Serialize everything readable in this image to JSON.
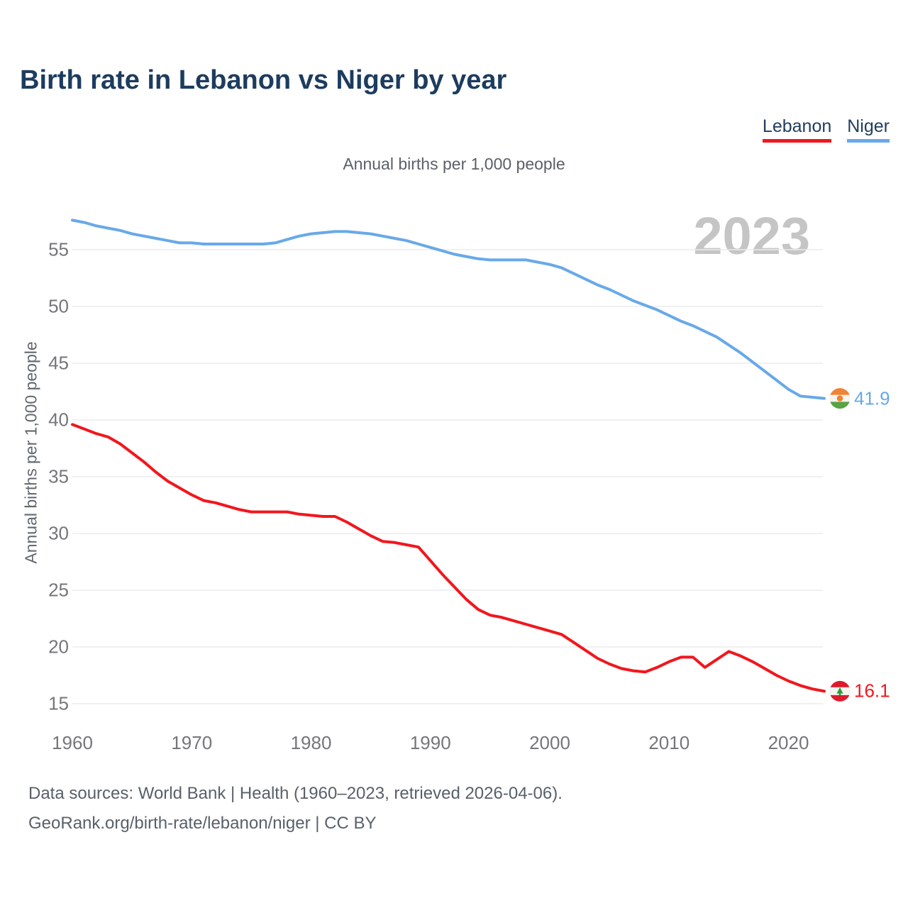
{
  "footer": {
    "line1": "Data sources: World Bank | Health (1960–2023, retrieved 2026-04-06).",
    "line2": "GeoRank.org/birth-rate/lebanon/niger | CC BY"
  },
  "chart_data": {
    "type": "line",
    "title": "Birth rate in Lebanon vs Niger by year",
    "subtitle": "Annual births per 1,000 people",
    "ylabel": "Annual births per 1,000 people",
    "xlabel": "",
    "watermark": "2023",
    "grid": true,
    "legend_position": "top-right",
    "x_ticks": [
      1960,
      1970,
      1980,
      1990,
      2000,
      2010,
      2020
    ],
    "y_ticks": [
      15,
      20,
      25,
      30,
      35,
      40,
      45,
      50,
      55
    ],
    "ylim": [
      13.9,
      58.2
    ],
    "xlim": [
      1960,
      2023
    ],
    "x": [
      1960,
      1961,
      1962,
      1963,
      1964,
      1965,
      1966,
      1967,
      1968,
      1969,
      1970,
      1971,
      1972,
      1973,
      1974,
      1975,
      1976,
      1977,
      1978,
      1979,
      1980,
      1981,
      1982,
      1983,
      1984,
      1985,
      1986,
      1987,
      1988,
      1989,
      1990,
      1991,
      1992,
      1993,
      1994,
      1995,
      1996,
      1997,
      1998,
      1999,
      2000,
      2001,
      2002,
      2003,
      2004,
      2005,
      2006,
      2007,
      2008,
      2009,
      2010,
      2011,
      2012,
      2013,
      2014,
      2015,
      2016,
      2017,
      2018,
      2019,
      2020,
      2021,
      2022,
      2023
    ],
    "series": [
      {
        "name": "Lebanon",
        "color": "#f2161d",
        "end_label": "16.1",
        "end_value": 16.1,
        "flag": "lebanon",
        "values": [
          39.6,
          39.2,
          38.8,
          38.5,
          37.9,
          37.1,
          36.3,
          35.4,
          34.6,
          34.0,
          33.4,
          32.9,
          32.7,
          32.4,
          32.1,
          31.9,
          31.9,
          31.9,
          31.9,
          31.7,
          31.6,
          31.5,
          31.5,
          31.0,
          30.4,
          29.8,
          29.3,
          29.2,
          29.0,
          28.8,
          27.6,
          26.4,
          25.3,
          24.2,
          23.3,
          22.8,
          22.6,
          22.3,
          22.0,
          21.7,
          21.4,
          21.1,
          20.4,
          19.7,
          19.0,
          18.5,
          18.1,
          17.9,
          17.8,
          18.2,
          18.7,
          19.1,
          19.1,
          18.2,
          18.9,
          19.6,
          19.2,
          18.7,
          18.1,
          17.5,
          17.0,
          16.6,
          16.3,
          16.1
        ]
      },
      {
        "name": "Niger",
        "color": "#68a9e8",
        "end_label": "41.9",
        "end_value": 41.9,
        "flag": "niger",
        "values": [
          57.6,
          57.4,
          57.1,
          56.9,
          56.7,
          56.4,
          56.2,
          56.0,
          55.8,
          55.6,
          55.6,
          55.5,
          55.5,
          55.5,
          55.5,
          55.5,
          55.5,
          55.6,
          55.9,
          56.2,
          56.4,
          56.5,
          56.6,
          56.6,
          56.5,
          56.4,
          56.2,
          56.0,
          55.8,
          55.5,
          55.2,
          54.9,
          54.6,
          54.4,
          54.2,
          54.1,
          54.1,
          54.1,
          54.1,
          53.9,
          53.7,
          53.4,
          52.9,
          52.4,
          51.9,
          51.5,
          51.0,
          50.5,
          50.1,
          49.7,
          49.2,
          48.7,
          48.3,
          47.8,
          47.3,
          46.6,
          45.9,
          45.1,
          44.3,
          43.5,
          42.7,
          42.1,
          42.0,
          41.9
        ]
      }
    ]
  }
}
